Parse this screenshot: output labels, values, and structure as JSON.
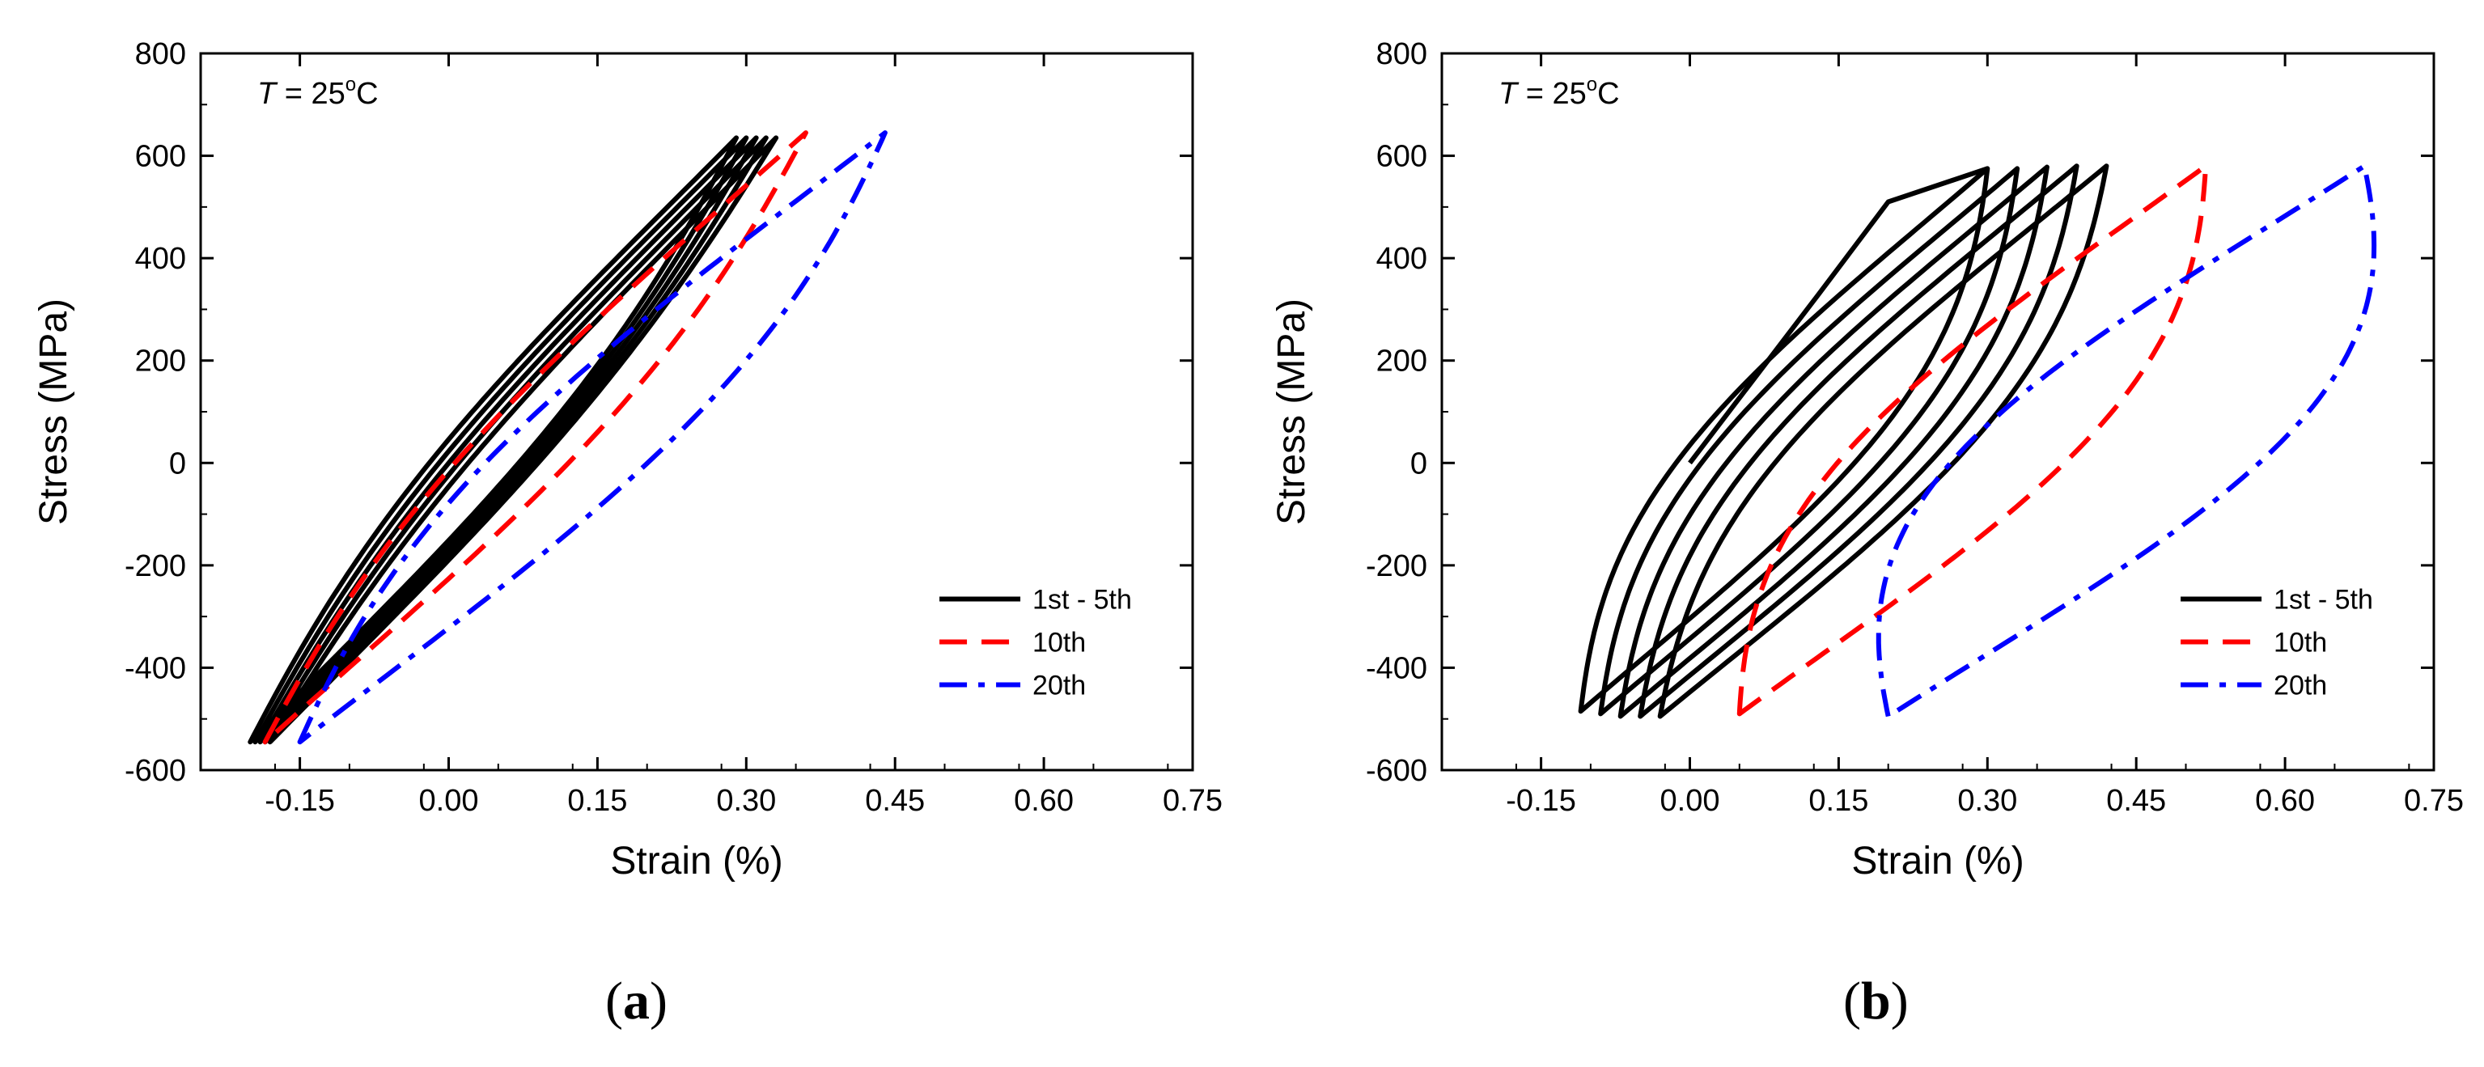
{
  "chart_data": [
    {
      "type": "line",
      "panel_label": "a",
      "annotation": {
        "variable": "T",
        "equals": " = 25",
        "sup": "o",
        "unit": "C"
      },
      "xlabel": "Strain (%)",
      "ylabel": "Stress (MPa)",
      "xlim": [
        -0.25,
        0.75
      ],
      "ylim": [
        -600,
        800
      ],
      "xticks": [
        "-0.15",
        "0.00",
        "0.15",
        "0.30",
        "0.45",
        "0.60",
        "0.75"
      ],
      "xtick_values": [
        -0.15,
        0.0,
        0.15,
        0.3,
        0.45,
        0.6,
        0.75
      ],
      "yticks": [
        "-600",
        "-400",
        "-200",
        "0",
        "200",
        "400",
        "600",
        "800"
      ],
      "ytick_values": [
        -600,
        -400,
        -200,
        0,
        200,
        400,
        600,
        800
      ],
      "legend": {
        "position": "bottom-right"
      },
      "series": [
        {
          "name": "1st - 5th",
          "color": "#000000",
          "dash": "solid",
          "loops": [
            {
              "min": [
                -0.2,
                -545
              ],
              "max": [
                0.29,
                635
              ],
              "bulge": 0.055
            },
            {
              "min": [
                -0.195,
                -545
              ],
              "max": [
                0.3,
                635
              ],
              "bulge": 0.052
            },
            {
              "min": [
                -0.19,
                -545
              ],
              "max": [
                0.31,
                635
              ],
              "bulge": 0.049
            },
            {
              "min": [
                -0.185,
                -545
              ],
              "max": [
                0.32,
                635
              ],
              "bulge": 0.046
            },
            {
              "min": [
                -0.18,
                -545
              ],
              "max": [
                0.33,
                635
              ],
              "bulge": 0.043
            }
          ]
        },
        {
          "name": "10th",
          "color": "#ff0000",
          "dash": "dashed",
          "loops": [
            {
              "min": [
                -0.185,
                -545
              ],
              "max": [
                0.36,
                645
              ],
              "bulge": 0.07
            }
          ]
        },
        {
          "name": "20th",
          "color": "#0000ff",
          "dash": "dashdot",
          "loops": [
            {
              "min": [
                -0.15,
                -545
              ],
              "max": [
                0.44,
                645
              ],
              "bulge": 0.1
            }
          ]
        }
      ]
    },
    {
      "type": "line",
      "panel_label": "b",
      "annotation": {
        "variable": "T",
        "equals": " = 25",
        "sup": "o",
        "unit": "C"
      },
      "xlabel": "Strain (%)",
      "ylabel": "Stress  (MPa)",
      "xlim": [
        -0.25,
        0.75
      ],
      "ylim": [
        -600,
        800
      ],
      "xticks": [
        "-0.15",
        "0.00",
        "0.15",
        "0.30",
        "0.45",
        "0.60",
        "0.75"
      ],
      "xtick_values": [
        -0.15,
        0.0,
        0.15,
        0.3,
        0.45,
        0.6,
        0.75
      ],
      "yticks": [
        "-600",
        "-400",
        "-200",
        "0",
        "200",
        "400",
        "600",
        "800"
      ],
      "ytick_values": [
        -600,
        -400,
        -200,
        0,
        200,
        400,
        600,
        800
      ],
      "legend": {
        "position": "bottom-right"
      },
      "series": [
        {
          "name": "1st - 5th",
          "color": "#000000",
          "dash": "solid",
          "initial_loading": [
            [
              0.0,
              0
            ],
            [
              0.13,
              330
            ],
            [
              0.2,
              510
            ],
            [
              0.3,
              575
            ]
          ],
          "loops": [
            {
              "min": [
                -0.11,
                -485
              ],
              "max": [
                0.3,
                575
              ],
              "bulge": 0.11
            },
            {
              "min": [
                -0.09,
                -490
              ],
              "max": [
                0.33,
                575
              ],
              "bulge": 0.11
            },
            {
              "min": [
                -0.07,
                -495
              ],
              "max": [
                0.36,
                578
              ],
              "bulge": 0.11
            },
            {
              "min": [
                -0.05,
                -495
              ],
              "max": [
                0.39,
                580
              ],
              "bulge": 0.11
            },
            {
              "min": [
                -0.03,
                -495
              ],
              "max": [
                0.42,
                580
              ],
              "bulge": 0.11
            }
          ]
        },
        {
          "name": "10th",
          "color": "#ff0000",
          "dash": "dashed",
          "loops": [
            {
              "min": [
                0.05,
                -490
              ],
              "max": [
                0.52,
                580
              ],
              "bulge": 0.14
            }
          ]
        },
        {
          "name": "20th",
          "color": "#0000ff",
          "dash": "dashdot",
          "loops": [
            {
              "min": [
                0.2,
                -495
              ],
              "max": [
                0.68,
                580
              ],
              "bulge": 0.19
            }
          ]
        }
      ]
    }
  ]
}
